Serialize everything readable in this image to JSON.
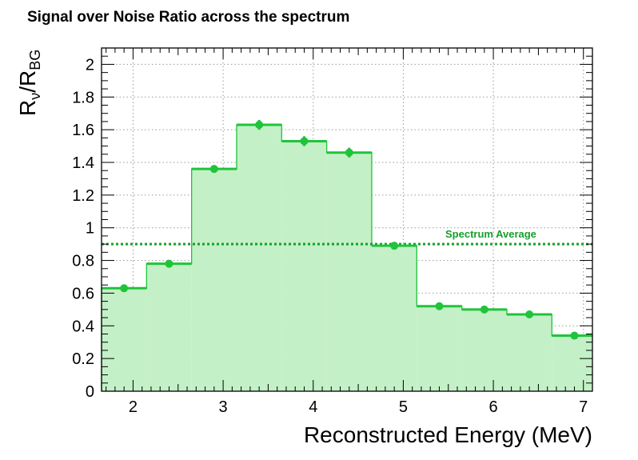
{
  "chart_data": {
    "type": "bar",
    "title": "Signal over Noise Ratio across the spectrum",
    "xlabel": "Reconstructed Energy (MeV)",
    "ylabel": {
      "main": "R",
      "sub1": "ν",
      "slash": "/R",
      "sub2": "BG"
    },
    "xlim": [
      1.65,
      7.1
    ],
    "ylim": [
      0,
      2.1
    ],
    "x_ticks": [
      "2",
      "3",
      "4",
      "5",
      "6",
      "7"
    ],
    "x_tick_values": [
      2,
      3,
      4,
      5,
      6,
      7
    ],
    "y_ticks": [
      "0",
      "0.2",
      "0.4",
      "0.6",
      "0.8",
      "1",
      "1.2",
      "1.4",
      "1.6",
      "1.8",
      "2"
    ],
    "y_tick_values": [
      0,
      0.2,
      0.4,
      0.6,
      0.8,
      1.0,
      1.2,
      1.4,
      1.6,
      1.8,
      2.0
    ],
    "grid": true,
    "bins": [
      {
        "x_low": 1.65,
        "x_high": 2.15,
        "center": 1.9,
        "value": 0.63,
        "error": 0.01
      },
      {
        "x_low": 2.15,
        "x_high": 2.65,
        "center": 2.4,
        "value": 0.78,
        "error": 0.01
      },
      {
        "x_low": 2.65,
        "x_high": 3.15,
        "center": 2.9,
        "value": 1.36,
        "error": 0.02
      },
      {
        "x_low": 3.15,
        "x_high": 3.65,
        "center": 3.4,
        "value": 1.63,
        "error": 0.03
      },
      {
        "x_low": 3.65,
        "x_high": 4.15,
        "center": 3.9,
        "value": 1.53,
        "error": 0.03
      },
      {
        "x_low": 4.15,
        "x_high": 4.65,
        "center": 4.4,
        "value": 1.46,
        "error": 0.03
      },
      {
        "x_low": 4.65,
        "x_high": 5.15,
        "center": 4.9,
        "value": 0.89,
        "error": 0.01
      },
      {
        "x_low": 5.15,
        "x_high": 5.65,
        "center": 5.4,
        "value": 0.52,
        "error": 0.01
      },
      {
        "x_low": 5.65,
        "x_high": 6.15,
        "center": 5.9,
        "value": 0.5,
        "error": 0.01
      },
      {
        "x_low": 6.15,
        "x_high": 6.65,
        "center": 6.4,
        "value": 0.47,
        "error": 0.01
      },
      {
        "x_low": 6.65,
        "x_high": 7.1,
        "center": 6.9,
        "value": 0.34,
        "error": 0.02
      }
    ],
    "reference_line": {
      "label": "Spectrum Average",
      "value": 0.9
    },
    "colors": {
      "line": "#1fc43a",
      "fill": "#c3f0c6",
      "average": "#15a02a",
      "grid": "#9a9a9a"
    }
  }
}
